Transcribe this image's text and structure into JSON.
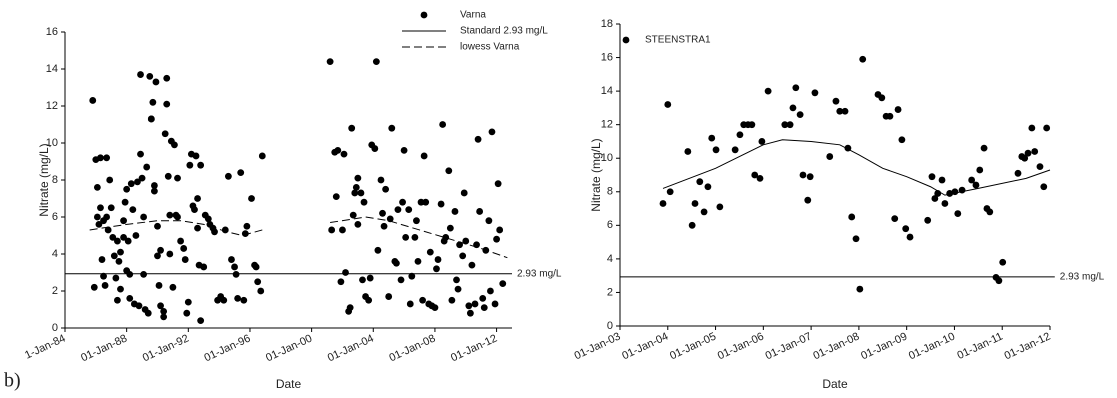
{
  "panel_label": "b)",
  "chart_data": [
    {
      "type": "scatter",
      "x_label": "Date",
      "y_label": "Nitrate (mg/L)",
      "legend": "top-right",
      "xlim": [
        1984,
        2013
      ],
      "ylim": [
        0,
        16
      ],
      "yticks": [
        0,
        2,
        4,
        6,
        8,
        10,
        12,
        14,
        16
      ],
      "xticks": [
        {
          "value": 1984,
          "label": "1-Jan-84"
        },
        {
          "value": 1988,
          "label": "01-Jan-88"
        },
        {
          "value": 1992,
          "label": "01-Jan-92"
        },
        {
          "value": 1996,
          "label": "01-Jan-96"
        },
        {
          "value": 2000,
          "label": "01-Jan-00"
        },
        {
          "value": 2004,
          "label": "01-Jan-04"
        },
        {
          "value": 2008,
          "label": "01-Jan-08"
        },
        {
          "value": 2012,
          "label": "01-Jan-12"
        }
      ],
      "series": [
        {
          "name": "Varna",
          "style": "markers",
          "color": "#000000",
          "x": [
            1985.8,
            1985.9,
            1986.0,
            1986.1,
            1986.1,
            1986.2,
            1986.3,
            1986.3,
            1986.4,
            1986.5,
            1986.5,
            1986.6,
            1986.7,
            1986.7,
            1986.8,
            1986.9,
            1987.0,
            1987.1,
            1987.2,
            1987.3,
            1987.4,
            1987.4,
            1987.5,
            1987.6,
            1987.6,
            1987.8,
            1987.8,
            1987.9,
            1988.0,
            1988.0,
            1988.1,
            1988.2,
            1988.2,
            1988.3,
            1988.4,
            1988.5,
            1988.6,
            1988.7,
            1988.8,
            1988.9,
            1988.9,
            1989.0,
            1989.1,
            1989.1,
            1989.2,
            1989.3,
            1989.4,
            1989.5,
            1989.6,
            1989.6,
            1989.7,
            1989.8,
            1989.8,
            1989.9,
            1990.0,
            1990.0,
            1990.1,
            1990.2,
            1990.2,
            1990.4,
            1990.4,
            1990.5,
            1990.6,
            1990.6,
            1990.7,
            1990.8,
            1990.8,
            1990.9,
            1991.0,
            1991.1,
            1991.2,
            1991.3,
            1991.3,
            1991.5,
            1991.7,
            1991.8,
            1991.9,
            1992.0,
            1992.1,
            1992.2,
            1992.3,
            1992.4,
            1992.5,
            1992.6,
            1992.6,
            1992.7,
            1992.8,
            1992.8,
            1993.0,
            1993.1,
            1993.3,
            1993.4,
            1993.6,
            1993.7,
            1993.9,
            1994.1,
            1994.3,
            1994.4,
            1994.6,
            1994.8,
            1995.0,
            1995.1,
            1995.2,
            1995.4,
            1995.6,
            1995.7,
            1995.8,
            1996.1,
            1996.3,
            1996.4,
            1996.5,
            1996.7,
            1996.8,
            2001.2,
            2001.3,
            2001.5,
            2001.6,
            2001.7,
            2001.9,
            2002.0,
            2002.1,
            2002.2,
            2002.4,
            2002.5,
            2002.6,
            2002.7,
            2002.8,
            2002.9,
            2003.0,
            2003.0,
            2003.2,
            2003.3,
            2003.4,
            2003.5,
            2003.7,
            2003.8,
            2003.9,
            2004.1,
            2004.2,
            2004.3,
            2004.5,
            2004.6,
            2004.7,
            2004.8,
            2005.0,
            2005.1,
            2005.2,
            2005.4,
            2005.5,
            2005.6,
            2005.8,
            2005.9,
            2006.0,
            2006.1,
            2006.3,
            2006.4,
            2006.5,
            2006.7,
            2006.8,
            2006.9,
            2007.1,
            2007.2,
            2007.3,
            2007.4,
            2007.6,
            2007.7,
            2007.8,
            2008.0,
            2008.1,
            2008.2,
            2008.4,
            2008.5,
            2008.6,
            2008.7,
            2008.9,
            2009.0,
            2009.1,
            2009.3,
            2009.4,
            2009.5,
            2009.6,
            2009.8,
            2009.9,
            2010.0,
            2010.2,
            2010.3,
            2010.4,
            2010.6,
            2010.7,
            2010.8,
            2010.9,
            2011.1,
            2011.2,
            2011.3,
            2011.5,
            2011.6,
            2011.7,
            2011.9,
            2012.0,
            2012.1,
            2012.2,
            2012.4
          ],
          "values": [
            12.3,
            2.2,
            9.1,
            7.6,
            6.0,
            5.6,
            9.2,
            6.5,
            3.7,
            2.8,
            5.8,
            2.3,
            6.0,
            9.2,
            5.3,
            8.0,
            6.5,
            4.9,
            3.9,
            2.7,
            4.7,
            1.5,
            3.6,
            2.1,
            4.1,
            4.9,
            5.8,
            6.8,
            3.1,
            7.5,
            4.7,
            2.9,
            1.6,
            7.8,
            6.4,
            1.3,
            5.0,
            7.9,
            1.2,
            13.7,
            9.4,
            8.1,
            2.9,
            6.0,
            1.0,
            8.7,
            0.8,
            13.6,
            11.3,
            11.3,
            12.2,
            7.4,
            7.7,
            13.3,
            5.5,
            3.9,
            2.3,
            1.2,
            4.2,
            0.9,
            0.6,
            10.5,
            13.5,
            12.1,
            8.2,
            6.1,
            4.0,
            10.1,
            2.2,
            9.9,
            6.1,
            8.1,
            6.0,
            4.7,
            4.3,
            3.7,
            0.8,
            1.4,
            8.8,
            9.4,
            6.6,
            6.4,
            9.3,
            7.0,
            5.4,
            3.4,
            8.8,
            0.4,
            3.3,
            6.1,
            5.9,
            5.6,
            5.4,
            5.2,
            1.5,
            1.7,
            1.5,
            5.3,
            8.2,
            3.7,
            3.3,
            2.9,
            1.6,
            8.4,
            1.5,
            5.1,
            5.5,
            7.0,
            3.4,
            3.3,
            2.5,
            2.0,
            9.3,
            14.4,
            5.3,
            9.5,
            7.1,
            9.6,
            2.5,
            5.3,
            9.4,
            3.0,
            0.9,
            1.1,
            10.8,
            6.1,
            7.3,
            7.6,
            8.1,
            5.6,
            7.3,
            2.6,
            6.8,
            1.7,
            1.5,
            2.7,
            9.9,
            9.7,
            14.4,
            4.2,
            8.0,
            6.2,
            5.5,
            7.5,
            1.7,
            5.9,
            10.8,
            3.6,
            3.5,
            6.4,
            2.6,
            6.8,
            9.6,
            4.9,
            6.4,
            1.3,
            2.8,
            4.9,
            5.8,
            3.6,
            6.8,
            1.5,
            9.3,
            6.8,
            1.3,
            4.1,
            1.2,
            1.1,
            3.2,
            3.7,
            6.7,
            11.0,
            4.7,
            4.9,
            8.5,
            5.4,
            1.5,
            6.3,
            2.6,
            2.1,
            4.5,
            3.9,
            7.3,
            4.7,
            1.2,
            0.8,
            3.4,
            1.3,
            4.5,
            10.2,
            6.3,
            1.6,
            1.1,
            4.2,
            5.8,
            2.0,
            10.6,
            1.3,
            4.8,
            7.8,
            5.3,
            2.4
          ]
        },
        {
          "name": "Standard 2.93 mg/L",
          "style": "solid",
          "color": "#000000",
          "label": "2.93 mg/L",
          "x": [
            1984,
            2013
          ],
          "values": [
            2.93,
            2.93
          ]
        },
        {
          "name": "lowess Varna",
          "style": "dashed",
          "color": "#000000",
          "x": [
            1985.6,
            1988,
            1990,
            1991.5,
            1993,
            1994.5,
            1995.5,
            1996.8,
            null,
            2001.2,
            2003.5,
            2005,
            2007,
            2009,
            2011,
            2012.7
          ],
          "values": [
            5.3,
            5.6,
            5.8,
            5.8,
            5.6,
            5.2,
            5.0,
            5.3,
            null,
            5.7,
            6.0,
            5.8,
            5.3,
            4.8,
            4.3,
            3.8
          ]
        }
      ]
    },
    {
      "type": "scatter",
      "x_label": "Date",
      "y_label": "Nitrate (mg/L)",
      "legend": "top-left",
      "xlim": [
        2003,
        2012
      ],
      "ylim": [
        0,
        18
      ],
      "yticks": [
        0,
        2,
        4,
        6,
        8,
        10,
        12,
        14,
        16,
        18
      ],
      "xticks": [
        {
          "value": 2003,
          "label": "01-Jan-03"
        },
        {
          "value": 2004,
          "label": "01-Jan-04"
        },
        {
          "value": 2005,
          "label": "01-Jan-05"
        },
        {
          "value": 2006,
          "label": "01-Jan-06"
        },
        {
          "value": 2007,
          "label": "01-Jan-07"
        },
        {
          "value": 2008,
          "label": "01-Jan-08"
        },
        {
          "value": 2009,
          "label": "01-Jan-09"
        },
        {
          "value": 2010,
          "label": "01-Jan-10"
        },
        {
          "value": 2011,
          "label": "01-Jan-11"
        },
        {
          "value": 2012,
          "label": "01-Jan-12"
        }
      ],
      "series": [
        {
          "name": "STEENSTRA1",
          "style": "markers",
          "color": "#000000",
          "x": [
            2003.9,
            2004.0,
            2004.05,
            2004.42,
            2004.51,
            2004.57,
            2004.67,
            2004.76,
            2004.84,
            2004.92,
            2005.01,
            2005.09,
            2005.41,
            2005.51,
            2005.59,
            2005.68,
            2005.76,
            2005.82,
            2005.93,
            2005.97,
            2006.1,
            2006.45,
            2006.56,
            2006.62,
            2006.68,
            2006.77,
            2006.83,
            2006.93,
            2006.98,
            2007.08,
            2007.39,
            2007.52,
            2007.6,
            2007.71,
            2007.77,
            2007.85,
            2007.94,
            2008.02,
            2008.08,
            2008.4,
            2008.48,
            2008.57,
            2008.65,
            2008.75,
            2008.82,
            2008.9,
            2008.98,
            2009.07,
            2009.44,
            2009.53,
            2009.59,
            2009.65,
            2009.74,
            2009.8,
            2009.9,
            2010.01,
            2010.07,
            2010.16,
            2010.36,
            2010.45,
            2010.53,
            2010.62,
            2010.68,
            2010.74,
            2010.87,
            2010.93,
            2011.01,
            2011.33,
            2011.41,
            2011.47,
            2011.54,
            2011.62,
            2011.68,
            2011.79,
            2011.87,
            2011.93
          ],
          "values": [
            7.3,
            13.2,
            8.0,
            10.4,
            6.0,
            7.3,
            8.6,
            6.8,
            8.3,
            11.2,
            10.5,
            7.1,
            10.5,
            11.4,
            12.0,
            12.0,
            12.0,
            9.0,
            8.8,
            11.0,
            14.0,
            12.0,
            12.0,
            13.0,
            14.2,
            12.6,
            9.0,
            7.5,
            8.9,
            13.9,
            10.1,
            13.4,
            12.8,
            12.8,
            10.6,
            6.5,
            5.2,
            2.2,
            15.9,
            13.8,
            13.6,
            12.5,
            12.5,
            6.4,
            12.9,
            11.1,
            5.8,
            5.3,
            6.3,
            8.9,
            7.6,
            7.9,
            8.7,
            7.3,
            7.9,
            8.0,
            6.7,
            8.1,
            8.7,
            8.4,
            9.3,
            10.6,
            7.0,
            6.8,
            2.9,
            2.7,
            3.8,
            9.1,
            10.1,
            10.0,
            10.3,
            11.8,
            10.4,
            9.5,
            8.3,
            11.8
          ]
        },
        {
          "style": "solid",
          "color": "#000000",
          "label": "2.93 mg/L",
          "x": [
            2003,
            2012.1
          ],
          "values": [
            2.93,
            2.93
          ]
        },
        {
          "style": "solid",
          "color": "#000000",
          "x": [
            2003.9,
            2005,
            2006,
            2006.4,
            2007,
            2007.6,
            2008,
            2008.5,
            2009,
            2009.5,
            2009.8,
            2010.5,
            2011.5,
            2012
          ],
          "values": [
            8.2,
            9.4,
            10.8,
            11.1,
            11.0,
            10.8,
            10.2,
            9.4,
            8.9,
            8.3,
            7.8,
            8.2,
            8.8,
            9.3
          ]
        }
      ]
    }
  ]
}
